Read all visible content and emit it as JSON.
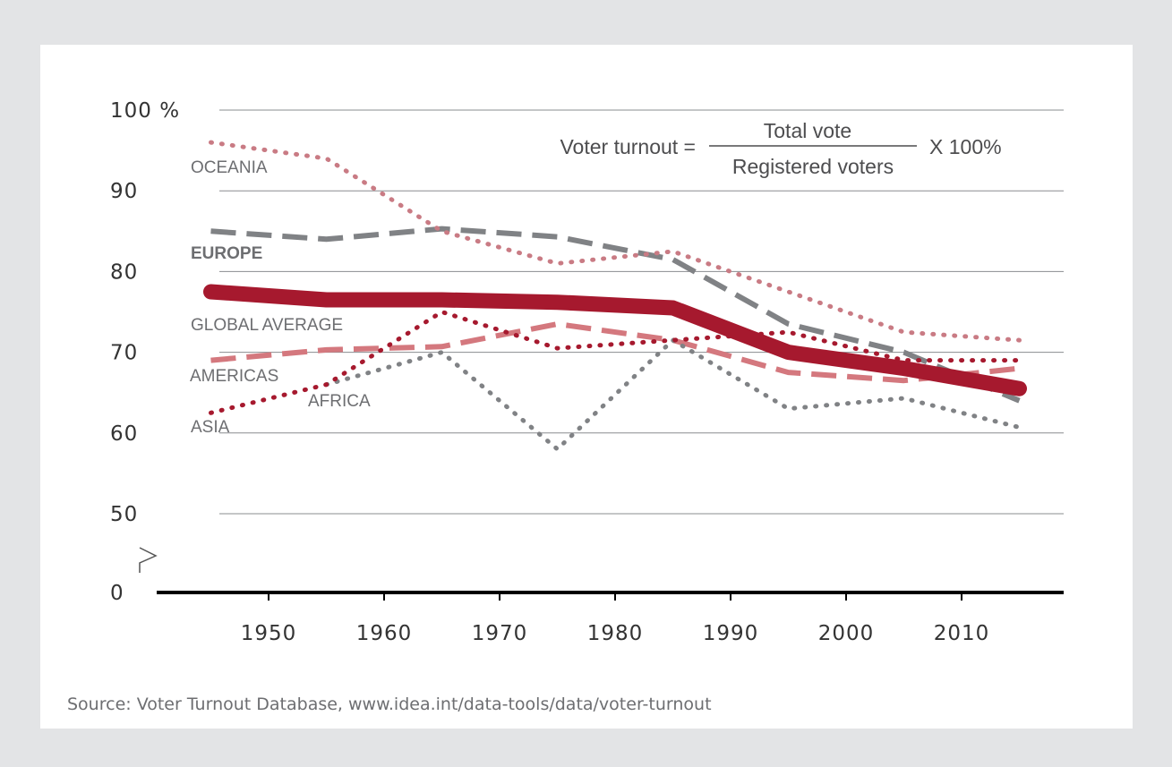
{
  "chart_data": {
    "type": "line",
    "x_ticks": [
      "1950",
      "1960",
      "1970",
      "1980",
      "1990",
      "2000",
      "2010"
    ],
    "y_ticks": [
      {
        "value": 100,
        "label": "100 %"
      },
      {
        "value": 90,
        "label": "90"
      },
      {
        "value": 80,
        "label": "80"
      },
      {
        "value": 70,
        "label": "70"
      },
      {
        "value": 60,
        "label": "60"
      },
      {
        "value": 50,
        "label": "50"
      },
      {
        "value": 0,
        "label": "0"
      }
    ],
    "xlim": [
      1940,
      2018
    ],
    "ylim_display": [
      50,
      100
    ],
    "axis_break": true,
    "grid": true,
    "x": [
      1945,
      1955,
      1965,
      1975,
      1985,
      1995,
      2005,
      2015
    ],
    "series": [
      {
        "name": "OCEANIA",
        "color": "#c97b84",
        "style": "dotted",
        "values": [
          96,
          94,
          85,
          81,
          82.5,
          77.5,
          72.5,
          71.5
        ]
      },
      {
        "name": "EUROPE",
        "color": "#808285",
        "style": "dashed",
        "values": [
          85,
          84,
          85.3,
          84.3,
          81.5,
          73.5,
          70,
          64
        ]
      },
      {
        "name": "GLOBAL AVERAGE",
        "color": "#a6192e",
        "style": "thick",
        "values": [
          77.5,
          76.5,
          76.5,
          76.2,
          75.5,
          70,
          68,
          65.5
        ]
      },
      {
        "name": "AMERICAS",
        "color": "#d4787e",
        "style": "dashed",
        "values": [
          69,
          70.3,
          70.7,
          73.5,
          71.5,
          67.5,
          66.5,
          68
        ]
      },
      {
        "name": "AFRICA",
        "color": "#808285",
        "style": "dotted",
        "values": [
          null,
          66,
          70,
          58,
          71.5,
          63,
          64.3,
          60.7
        ]
      },
      {
        "name": "ASIA",
        "color": "#a6192e",
        "style": "dotted",
        "values": [
          62.5,
          66,
          75,
          70.5,
          71.5,
          72.5,
          69,
          69
        ]
      }
    ],
    "series_labels": [
      {
        "name": "OCEANIA",
        "text": "OCEANIA",
        "bold": false
      },
      {
        "name": "EUROPE",
        "text": "EUROPE",
        "bold": true
      },
      {
        "name": "GLOBAL AVERAGE",
        "text": "GLOBAL AVERAGE",
        "bold": false
      },
      {
        "name": "AMERICAS",
        "text": "AMERICAS",
        "bold": false
      },
      {
        "name": "AFRICA",
        "text": "AFRICA",
        "bold": false
      },
      {
        "name": "ASIA",
        "text": "ASIA",
        "bold": false
      }
    ],
    "annotation": {
      "lhs": "Voter turnout =",
      "numerator": "Total vote",
      "denominator": "Registered voters",
      "rhs": "X 100%"
    }
  },
  "source": "Source: Voter Turnout Database, www.idea.int/data-tools/data/voter-turnout"
}
